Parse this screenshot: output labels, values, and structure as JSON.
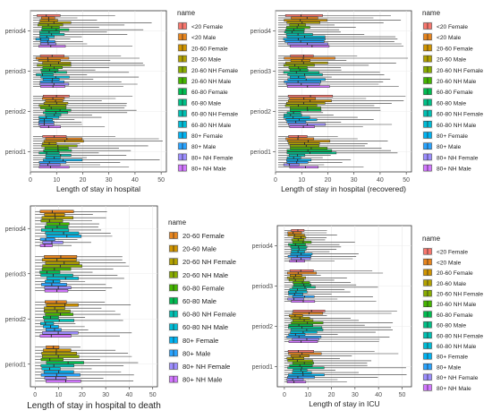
{
  "chart_data": [
    {
      "type": "boxplot",
      "xlabel": "Length of stay in hospital",
      "legend_title": "name",
      "xlim": [
        0,
        52
      ],
      "xticks": [
        0,
        10,
        20,
        30,
        40,
        50
      ],
      "categories": [
        "period4",
        "period3",
        "period2",
        "period1"
      ],
      "series": [
        "<20 Female",
        "<20 Male",
        "20-60 Female",
        "20-60 Male",
        "20-60 NH Female",
        "20-60 NH Male",
        "60-80 Female",
        "60-80 Male",
        "60-80 NH Female",
        "60-80 NH Male",
        "80+ Female",
        "80+ Male",
        "80+ NH Female",
        "80+ NH Male"
      ],
      "box_ranges": {
        "period4": [
          [
            2,
            16
          ],
          [
            1,
            48
          ]
        ],
        "period3": [
          [
            2,
            16
          ],
          [
            1,
            45
          ]
        ],
        "period2": [
          [
            3,
            17
          ],
          [
            1,
            46
          ]
        ],
        "period1": [
          [
            3,
            21
          ],
          [
            1,
            52
          ]
        ]
      },
      "legend_colors": [
        "#F8766D",
        "#E7851E",
        "#D09400",
        "#B2A100",
        "#89AC00",
        "#45B500",
        "#00BC51",
        "#00C087",
        "#00C0B2",
        "#00BCD6",
        "#00B3F2",
        "#29A3FF",
        "#9C8DFF",
        "#D277FF"
      ]
    },
    {
      "type": "boxplot",
      "xlabel": "Length of stay in hospital (recovered)",
      "legend_title": "name",
      "xlim": [
        0,
        52
      ],
      "xticks": [
        0,
        10,
        20,
        30,
        40,
        50
      ],
      "categories": [
        "period4",
        "period3",
        "period2",
        "period1"
      ],
      "series": [
        "<20 Female",
        "<20 Male",
        "20-60 Female",
        "20-60 Male",
        "20-60 NH Female",
        "20-60 NH Male",
        "60-80 Female",
        "60-80 Male",
        "60-80 NH Female",
        "60-80 NH Male",
        "80+ Female",
        "80+ Male",
        "80+ NH Female",
        "80+ NH Male"
      ],
      "box_ranges": {
        "period4": [
          [
            3,
            22
          ],
          [
            1,
            52
          ]
        ],
        "period3": [
          [
            3,
            23
          ],
          [
            1,
            51
          ]
        ],
        "period2": [
          [
            3,
            22
          ],
          [
            1,
            50
          ]
        ],
        "period1": [
          [
            3,
            28
          ],
          [
            1,
            52
          ]
        ]
      },
      "legend_colors": [
        "#F8766D",
        "#E7851E",
        "#D09400",
        "#B2A100",
        "#89AC00",
        "#45B500",
        "#00BC51",
        "#00C087",
        "#00C0B2",
        "#00BCD6",
        "#00B3F2",
        "#29A3FF",
        "#9C8DFF",
        "#D277FF"
      ]
    },
    {
      "type": "boxplot",
      "xlabel": "Length of stay in hospital to death",
      "legend_title": "name",
      "xlim": [
        -2,
        52
      ],
      "xticks": [
        0,
        10,
        20,
        30,
        40,
        50
      ],
      "categories": [
        "period4",
        "period3",
        "period2",
        "period1"
      ],
      "series": [
        "20-60 Female",
        "20-60 Male",
        "20-60 NH Female",
        "20-60 NH Male",
        "60-80 Female",
        "60-80 Male",
        "60-80 NH Female",
        "60-80 NH Male",
        "80+ Female",
        "80+ Male",
        "80+ NH Female",
        "80+ NH Male"
      ],
      "box_ranges": {
        "period4": [
          [
            2,
            20
          ],
          [
            0,
            33
          ]
        ],
        "period3": [
          [
            2,
            20
          ],
          [
            0,
            40
          ]
        ],
        "period2": [
          [
            2,
            21
          ],
          [
            0,
            45
          ]
        ],
        "period1": [
          [
            2,
            23
          ],
          [
            0,
            47
          ]
        ]
      },
      "legend_colors": [
        "#E7851E",
        "#D09400",
        "#B2A100",
        "#89AC00",
        "#45B500",
        "#00BC51",
        "#00C0B2",
        "#00BCD6",
        "#00B3F2",
        "#29A3FF",
        "#9C8DFF",
        "#D277FF"
      ]
    },
    {
      "type": "boxplot",
      "xlabel": "Length of stay in ICU",
      "legend_title": "name",
      "xlim": [
        -3,
        54
      ],
      "xticks": [
        0,
        10,
        20,
        30,
        40,
        50
      ],
      "categories": [
        "period4",
        "period3",
        "period2",
        "period1"
      ],
      "series": [
        "<20 Female",
        "<20 Male",
        "20-60 Female",
        "20-60 Male",
        "20-60 NH Female",
        "20-60 NH Male",
        "60-80 Female",
        "60-80 Male",
        "60-80 NH Female",
        "60-80 NH Male",
        "80+ Female",
        "80+ Male",
        "80+ NH Female",
        "80+ NH Male"
      ],
      "box_ranges": {
        "period4": [
          [
            1,
            12
          ],
          [
            0,
            32
          ]
        ],
        "period3": [
          [
            1,
            14
          ],
          [
            0,
            43
          ]
        ],
        "period2": [
          [
            1,
            18
          ],
          [
            0,
            50
          ]
        ],
        "period1": [
          [
            1,
            17
          ],
          [
            0,
            52
          ]
        ]
      },
      "legend_colors": [
        "#F8766D",
        "#E7851E",
        "#D09400",
        "#B2A100",
        "#89AC00",
        "#45B500",
        "#00BC51",
        "#00C087",
        "#00C0B2",
        "#00BCD6",
        "#00B3F2",
        "#29A3FF",
        "#9C8DFF",
        "#D277FF"
      ]
    }
  ]
}
